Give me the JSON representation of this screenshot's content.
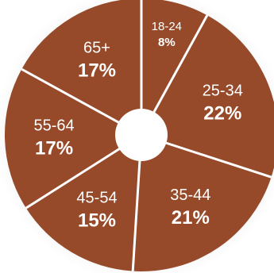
{
  "chart_data": {
    "type": "pie",
    "style": "donut",
    "categories": [
      "18-24",
      "25-34",
      "35-44",
      "45-54",
      "55-64",
      "65+"
    ],
    "values": [
      8,
      22,
      21,
      15,
      17,
      17
    ],
    "value_labels": [
      "8%",
      "22%",
      "21%",
      "15%",
      "17%",
      "17%"
    ],
    "unit": "%",
    "title": "",
    "legend": "none",
    "start": "top, clockwise",
    "colors": {
      "slice": "#974a2a",
      "separator": "#ffffff",
      "center": "#ffffff",
      "backdrop": "#eeeeee"
    }
  }
}
